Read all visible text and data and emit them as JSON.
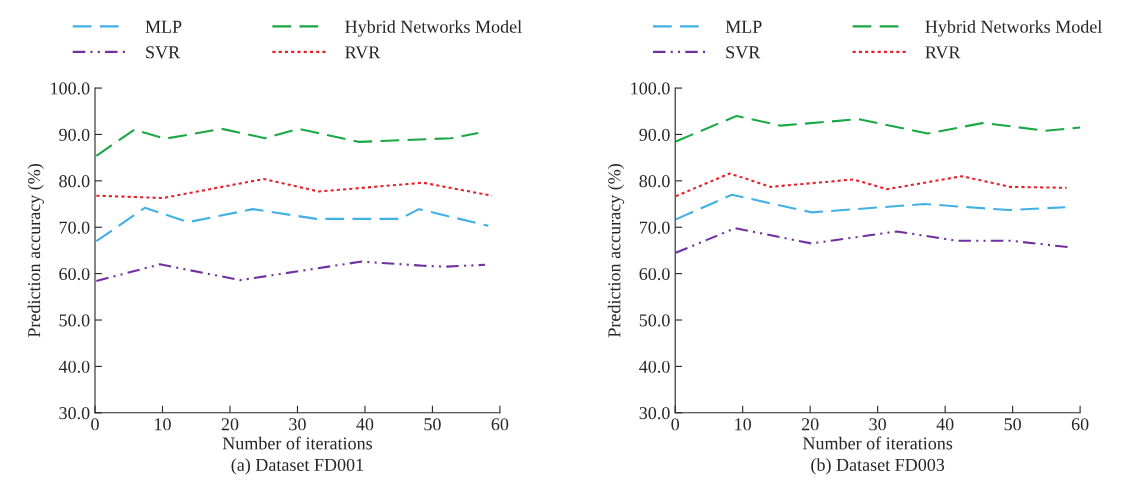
{
  "chart_data": [
    {
      "type": "line",
      "xlabel": "Number of iterations",
      "ylabel": "Prediction accuracy (%)",
      "annotations": [
        "(a) Dataset FD001"
      ],
      "xlim": [
        0,
        60
      ],
      "ylim": [
        30,
        100
      ],
      "xticks": [
        0,
        10,
        20,
        30,
        40,
        50,
        60
      ],
      "yticks": [
        {
          "value": 30,
          "label": "30.0"
        },
        {
          "value": 40,
          "label": "40.0"
        },
        {
          "value": 50,
          "label": "50.0"
        },
        {
          "value": 60,
          "label": "60.0"
        },
        {
          "value": 70,
          "label": "70.0"
        },
        {
          "value": 80,
          "label": "80.0"
        },
        {
          "value": 90,
          "label": "90.0"
        },
        {
          "value": 100,
          "label": "100.0"
        }
      ],
      "grid": false,
      "legend": "top",
      "marker": "none",
      "series": [
        {
          "name": "MLP",
          "color": "#41b0e4",
          "line_style": "dashed",
          "x": [
            0.2,
            7.4,
            13.8,
            23.4,
            32.8,
            45.2,
            48.0,
            58.3
          ],
          "values": [
            67.0,
            74.2,
            71.1,
            73.9,
            71.8,
            71.8,
            73.9,
            70.3
          ]
        },
        {
          "name": "Hybrid Networks Model",
          "color": "#1aa845",
          "line_style": "dashed",
          "x": [
            0.2,
            5.8,
            10.4,
            18.8,
            25.2,
            30.2,
            39.1,
            52.8,
            56.8
          ],
          "values": [
            85.4,
            91.0,
            89.1,
            91.2,
            89.2,
            91.2,
            88.4,
            89.2,
            90.3
          ]
        },
        {
          "name": "SVR",
          "color": "#7030a0",
          "line_style": "dashdot",
          "x": [
            0.2,
            9.6,
            21.5,
            39.5,
            48.6,
            52.0,
            57.8
          ],
          "values": [
            58.4,
            62.0,
            58.6,
            62.6,
            61.7,
            61.5,
            61.9
          ]
        },
        {
          "name": "RVR",
          "color": "#e8202a",
          "line_style": "dotted",
          "x": [
            0.2,
            10.1,
            25.0,
            33.2,
            48.6,
            58.8
          ],
          "values": [
            76.8,
            76.3,
            80.4,
            77.7,
            79.6,
            76.8
          ]
        }
      ]
    },
    {
      "type": "line",
      "xlabel": "Number of iterations",
      "ylabel": "Prediction accuracy (%)",
      "annotations": [
        "(b) Dataset FD003"
      ],
      "xlim": [
        0,
        60
      ],
      "ylim": [
        30,
        100
      ],
      "xticks": [
        0,
        10,
        20,
        30,
        40,
        50,
        60
      ],
      "yticks": [
        {
          "value": 30,
          "label": "30.0"
        },
        {
          "value": 40,
          "label": "40.0"
        },
        {
          "value": 50,
          "label": "50.0"
        },
        {
          "value": 60,
          "label": "60.0"
        },
        {
          "value": 70,
          "label": "70.0"
        },
        {
          "value": 80,
          "label": "80.0"
        },
        {
          "value": 90,
          "label": "90.0"
        },
        {
          "value": 100,
          "label": "100.0"
        }
      ],
      "grid": false,
      "legend": "top",
      "marker": "none",
      "series": [
        {
          "name": "MLP",
          "color": "#41b0e4",
          "line_style": "dashed",
          "x": [
            0.1,
            8.4,
            20.2,
            37.0,
            49.4,
            57.8
          ],
          "values": [
            71.7,
            77.0,
            73.2,
            75.0,
            73.7,
            74.3
          ]
        },
        {
          "name": "Hybrid Networks Model",
          "color": "#1aa845",
          "line_style": "dashed",
          "x": [
            0.1,
            9.1,
            15.6,
            27.2,
            37.4,
            45.7,
            54.8,
            60.0
          ],
          "values": [
            88.5,
            94.0,
            91.9,
            93.3,
            90.2,
            92.5,
            90.8,
            91.5
          ]
        },
        {
          "name": "SVR",
          "color": "#7030a0",
          "line_style": "dashdot",
          "x": [
            0.1,
            8.9,
            20.2,
            32.8,
            41.7,
            49.6,
            58.3
          ],
          "values": [
            64.5,
            69.8,
            66.5,
            69.1,
            67.1,
            67.1,
            65.7
          ]
        },
        {
          "name": "RVR",
          "color": "#e8202a",
          "line_style": "dotted",
          "x": [
            0.1,
            8.1,
            14.1,
            26.4,
            31.4,
            42.5,
            49.6,
            58.0
          ],
          "values": [
            76.7,
            81.6,
            78.7,
            80.3,
            78.2,
            81.0,
            78.7,
            78.5
          ]
        }
      ]
    }
  ]
}
